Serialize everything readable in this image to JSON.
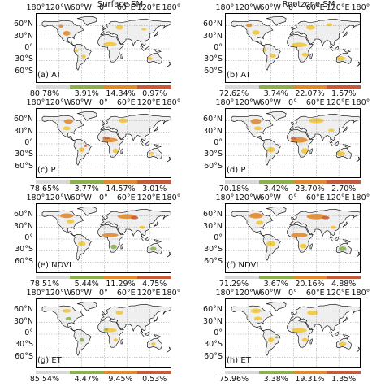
{
  "columns": [
    "Surface SM",
    "Rootzone SM"
  ],
  "lon_labels": [
    "180°",
    "120°W",
    "60°W",
    "0°",
    "60°E",
    "120°E",
    "180°"
  ],
  "lat_labels": [
    "60°N",
    "30°N",
    "0°",
    "30°S",
    "60°S"
  ],
  "colors": {
    "gray": "#d9d9d9",
    "green": "#8bb04c",
    "yellow": "#f0c63c",
    "orange": "#e08a2c",
    "red": "#c85a3c",
    "coast": "#000000",
    "grid": "#9a9a9a"
  },
  "panels": [
    {
      "label": "(a) AT",
      "pcts": [
        "80.78%",
        "3.91%",
        "14.34%",
        "0.97%"
      ]
    },
    {
      "label": "(b) AT",
      "pcts": [
        "72.62%",
        "3.74%",
        "22.07%",
        "1.57%"
      ]
    },
    {
      "label": "(c) P",
      "pcts": [
        "78.65%",
        "3.77%",
        "14.57%",
        "3.01%"
      ]
    },
    {
      "label": "(d) P",
      "pcts": [
        "70.18%",
        "3.42%",
        "23.70%",
        "2.70%"
      ]
    },
    {
      "label": "(e) NDVI",
      "pcts": [
        "78.51%",
        "5.44%",
        "11.29%",
        "4.75%"
      ]
    },
    {
      "label": "(f) NDVI",
      "pcts": [
        "71.29%",
        "3.67%",
        "20.16%",
        "4.88%"
      ]
    },
    {
      "label": "(g) ET",
      "pcts": [
        "85.54%",
        "4.47%",
        "9.45%",
        "0.53%"
      ]
    },
    {
      "label": "(h) ET",
      "pcts": [
        "75.96%",
        "3.38%",
        "19.31%",
        "1.35%"
      ]
    }
  ]
}
